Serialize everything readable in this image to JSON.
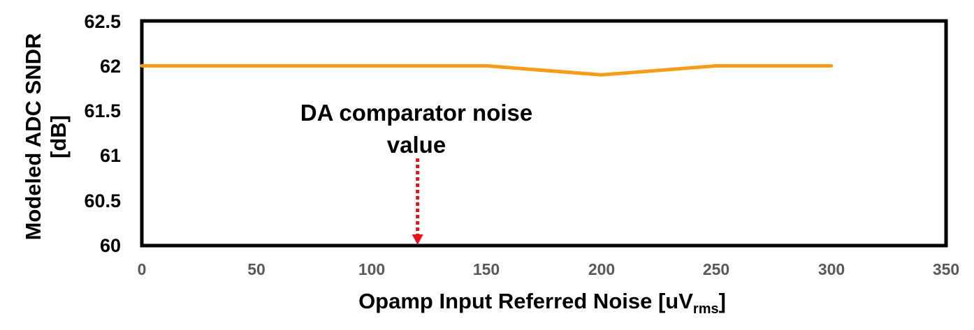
{
  "chart_data": {
    "type": "line",
    "title": "",
    "xlabel": "Opamp Input Referred Noise [uV",
    "xlabel_sub": "rms",
    "xlabel_end": "]",
    "ylabel_line1": "Modeled ADC SNDR",
    "ylabel_line2": "[dB]",
    "xlim": [
      0,
      350
    ],
    "ylim": [
      60,
      62.5
    ],
    "x_ticks": [
      "0",
      "50",
      "100",
      "150",
      "200",
      "250",
      "300",
      "350"
    ],
    "y_ticks": [
      "62.5",
      "62",
      "61.5",
      "61",
      "60.5",
      "60"
    ],
    "grid": false,
    "series": [
      {
        "color": "#F59D1B",
        "points": [
          [
            0,
            62.0
          ],
          [
            50,
            62.0
          ],
          [
            100,
            62.0
          ],
          [
            150,
            62.0
          ],
          [
            200,
            61.9
          ],
          [
            250,
            62.0
          ],
          [
            300,
            62.0
          ]
        ]
      }
    ],
    "annotation": {
      "text_line1": "DA comparator noise",
      "text_line2": "value",
      "x": 120,
      "arrow_color": "#E8121A"
    }
  }
}
